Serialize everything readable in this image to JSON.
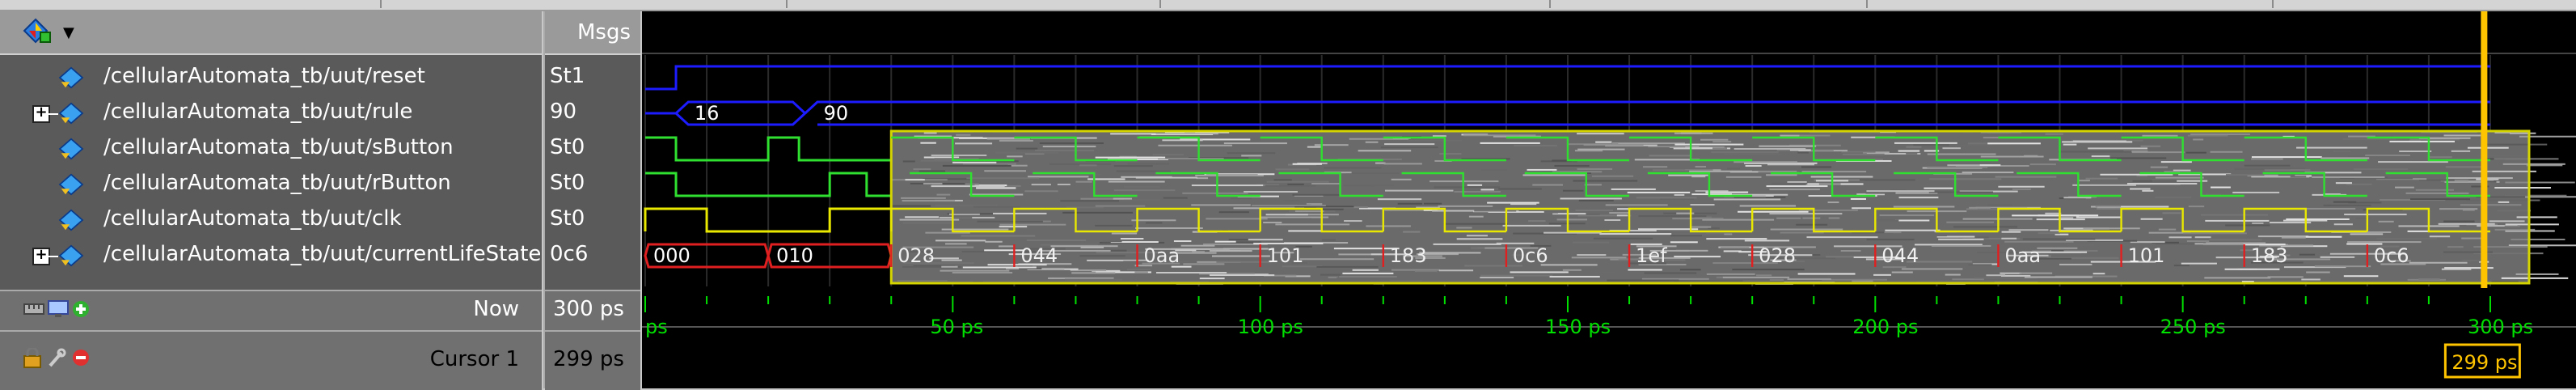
{
  "toolbar": {
    "icon": "wave-diamond-icon",
    "dropdown_icon": "chevron-down-icon"
  },
  "columns": {
    "msgs_label": "Msgs"
  },
  "signals": [
    {
      "name": "/cellularAutomata_tb/uut/reset",
      "value": "St1",
      "expandable": false,
      "icon": "signal-diamond-icon"
    },
    {
      "name": "/cellularAutomata_tb/uut/rule",
      "value": "90",
      "expandable": true,
      "icon": "signal-diamond-icon"
    },
    {
      "name": "/cellularAutomata_tb/uut/sButton",
      "value": "St0",
      "expandable": false,
      "icon": "signal-diamond-icon"
    },
    {
      "name": "/cellularAutomata_tb/uut/rButton",
      "value": "St0",
      "expandable": false,
      "icon": "signal-diamond-icon"
    },
    {
      "name": "/cellularAutomata_tb/uut/clk",
      "value": "St0",
      "expandable": false,
      "icon": "signal-diamond-icon"
    },
    {
      "name": "/cellularAutomata_tb/uut/currentLifeState",
      "value": "0c6",
      "expandable": true,
      "icon": "signal-diamond-icon"
    }
  ],
  "footer": {
    "now_label": "Now",
    "now_value": "300 ps",
    "cursor_label": "Cursor 1",
    "cursor_value": "299 ps",
    "cursor_box_label": "299 ps",
    "icons": [
      "ruler-icon",
      "monitor-icon",
      "add-icon",
      "lock-icon",
      "wrench-icon",
      "remove-icon"
    ]
  },
  "waves": {
    "rule_values": [
      "16",
      "90"
    ],
    "life_values": [
      "000",
      "010",
      "028",
      "044",
      "0aa",
      "101",
      "183",
      "0c6",
      "1ef",
      "028",
      "044",
      "0aa",
      "101",
      "183",
      "0c6"
    ],
    "colors": {
      "bus_blue": "#1c1cff",
      "green": "#30e030",
      "yellow": "#e8e800",
      "red": "#e02020",
      "cursor": "#ffc400",
      "ruler": "#00e000"
    }
  },
  "timeline": {
    "ticks": [
      "ps",
      "50 ps",
      "100 ps",
      "150 ps",
      "200 ps",
      "250 ps",
      "300 ps"
    ],
    "t_end_ps": 305
  }
}
